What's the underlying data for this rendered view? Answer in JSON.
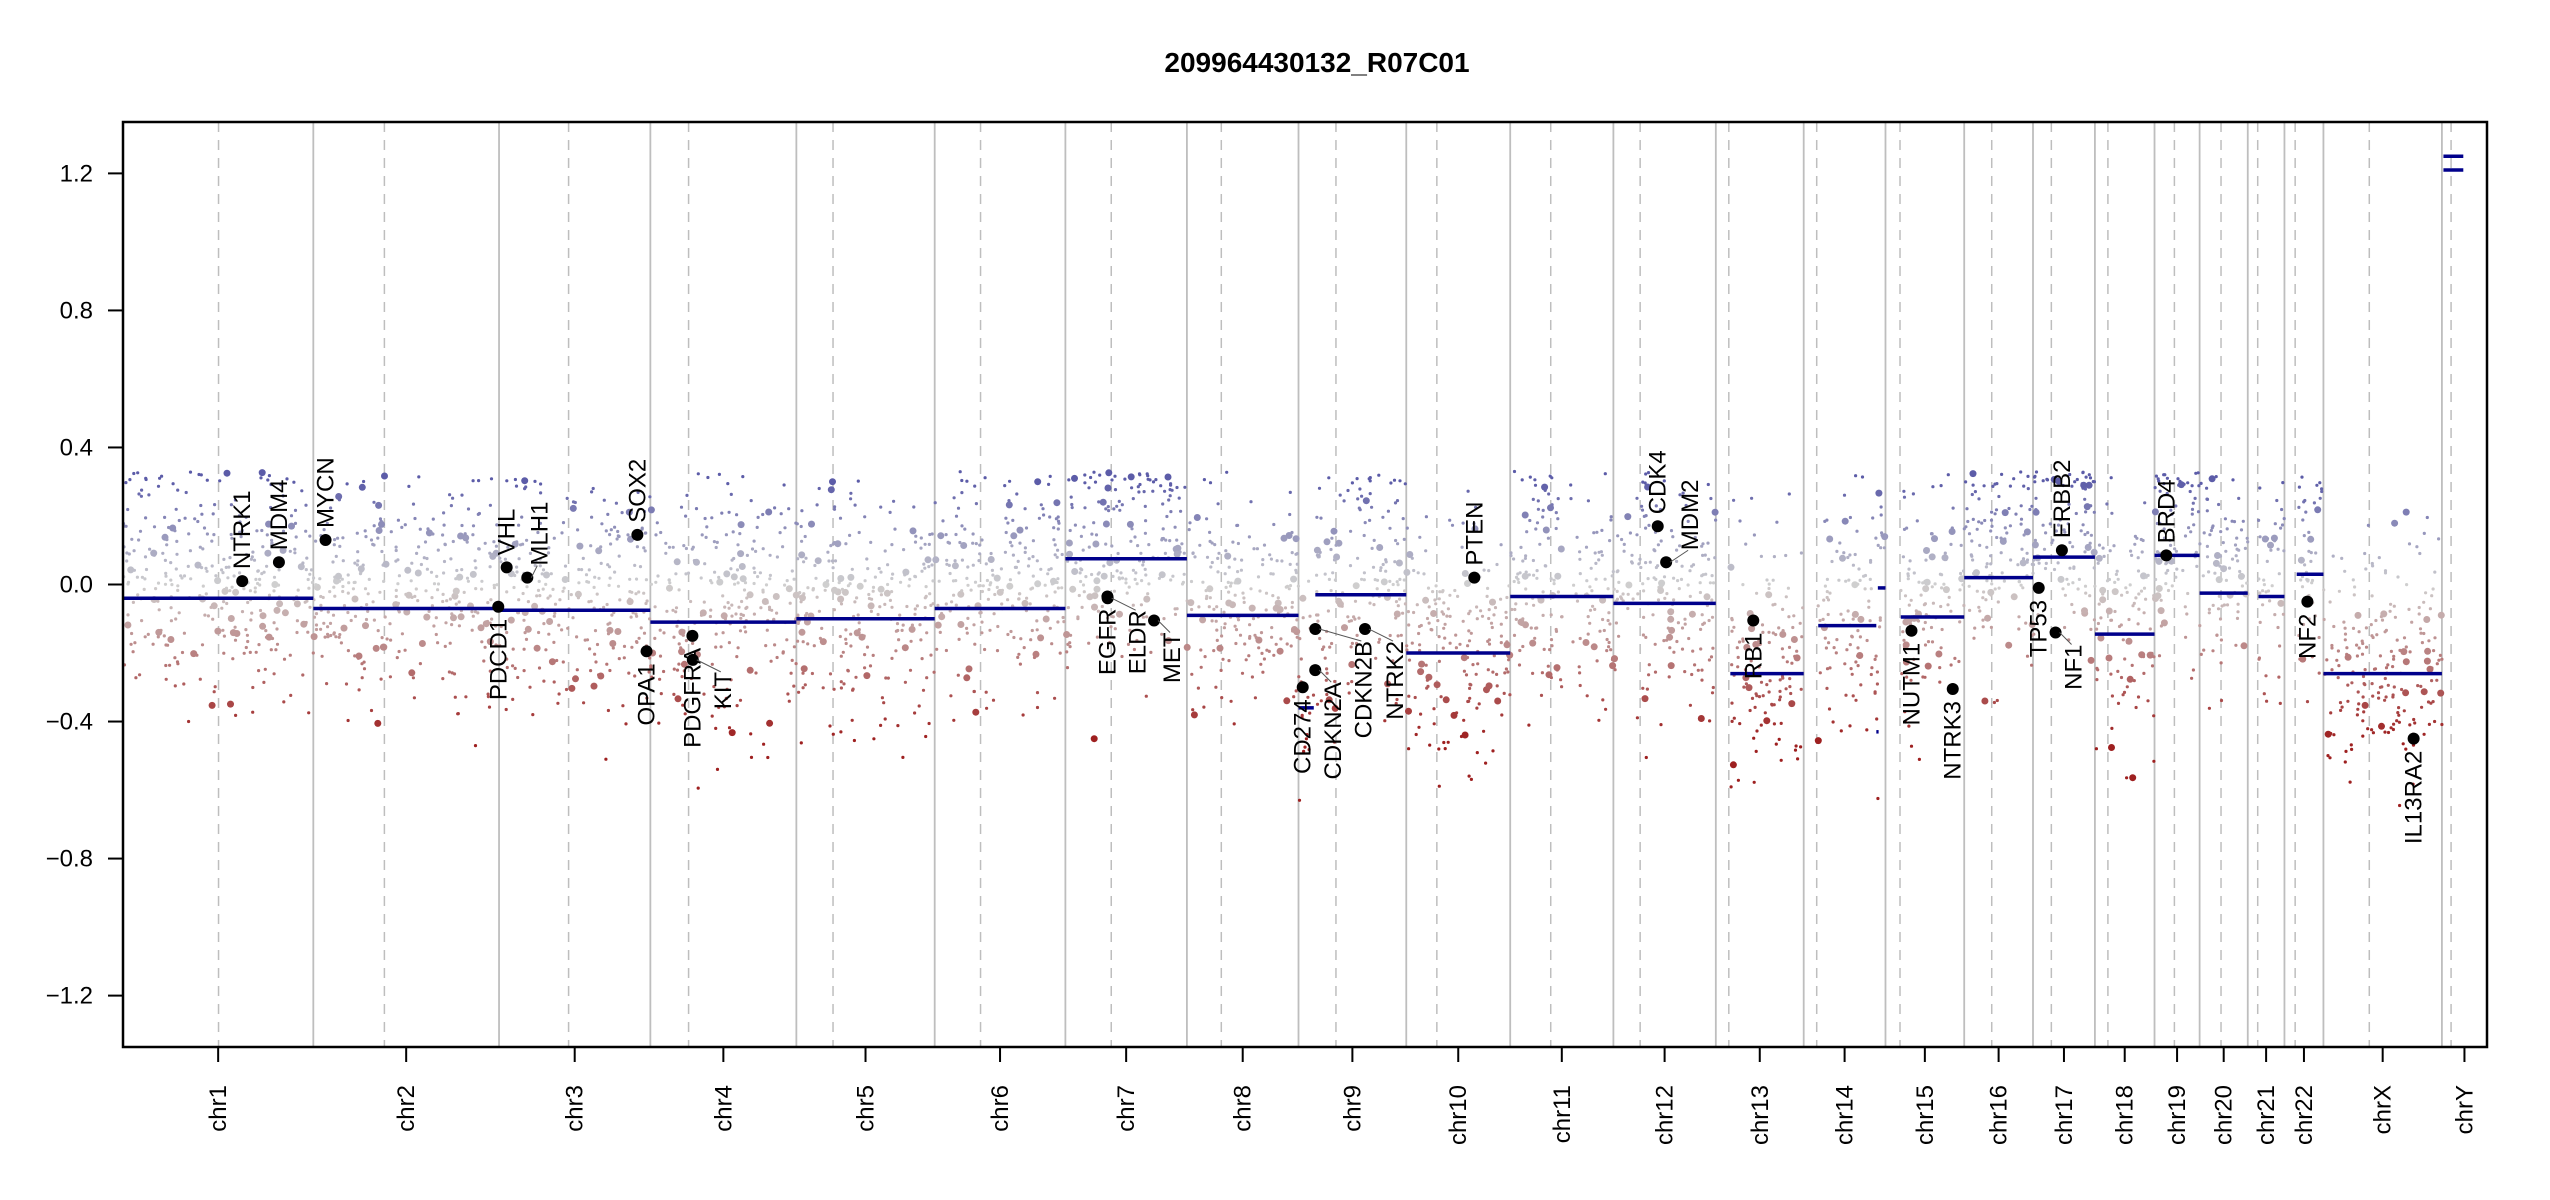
{
  "chart_data": {
    "type": "scatter",
    "title": "209964430132_R07C01",
    "xlabel": "",
    "ylabel": "",
    "ylim": [
      -1.35,
      1.35
    ],
    "yticks": [
      {
        "value": 1.2,
        "label": "1.2"
      },
      {
        "value": 0.8,
        "label": "0.8"
      },
      {
        "value": 0.4,
        "label": "0.4"
      },
      {
        "value": 0.0,
        "label": "0.0"
      },
      {
        "value": -0.4,
        "label": "−0.4"
      },
      {
        "value": -0.8,
        "label": "−0.8"
      },
      {
        "value": -1.2,
        "label": "−1.2"
      }
    ],
    "grid": false,
    "legend": "none",
    "colors": {
      "segment": "#00008b",
      "gain": "#5c5ca8",
      "neutral": "#cfcfcf",
      "loss": "#9e2020",
      "chr_boundary": "#bebebe",
      "centromere": "#bebebe",
      "gene_point": "#000000"
    },
    "chromosomes": [
      {
        "name": "chr1",
        "label": "chr1",
        "length_mb": 249,
        "centromere_mb": 125
      },
      {
        "name": "chr2",
        "label": "chr2",
        "length_mb": 243,
        "centromere_mb": 93
      },
      {
        "name": "chr3",
        "label": "chr3",
        "length_mb": 198,
        "centromere_mb": 91
      },
      {
        "name": "chr4",
        "label": "chr4",
        "length_mb": 191,
        "centromere_mb": 50
      },
      {
        "name": "chr5",
        "label": "chr5",
        "length_mb": 181,
        "centromere_mb": 48
      },
      {
        "name": "chr6",
        "label": "chr6",
        "length_mb": 171,
        "centromere_mb": 60
      },
      {
        "name": "chr7",
        "label": "chr7",
        "length_mb": 159,
        "centromere_mb": 60
      },
      {
        "name": "chr8",
        "label": "chr8",
        "length_mb": 146,
        "centromere_mb": 45
      },
      {
        "name": "chr9",
        "label": "chr9",
        "length_mb": 141,
        "centromere_mb": 49
      },
      {
        "name": "chr10",
        "label": "chr10",
        "length_mb": 136,
        "centromere_mb": 40
      },
      {
        "name": "chr11",
        "label": "chr11",
        "length_mb": 135,
        "centromere_mb": 53
      },
      {
        "name": "chr12",
        "label": "chr12",
        "length_mb": 134,
        "centromere_mb": 35
      },
      {
        "name": "chr13",
        "label": "chr13",
        "length_mb": 115,
        "centromere_mb": 17
      },
      {
        "name": "chr14",
        "label": "chr14",
        "length_mb": 107,
        "centromere_mb": 17
      },
      {
        "name": "chr15",
        "label": "chr15",
        "length_mb": 103,
        "centromere_mb": 19
      },
      {
        "name": "chr16",
        "label": "chr16",
        "length_mb": 90,
        "centromere_mb": 36
      },
      {
        "name": "chr17",
        "label": "chr17",
        "length_mb": 81,
        "centromere_mb": 24
      },
      {
        "name": "chr18",
        "label": "chr18",
        "length_mb": 78,
        "centromere_mb": 17
      },
      {
        "name": "chr19",
        "label": "chr19",
        "length_mb": 59,
        "centromere_mb": 26
      },
      {
        "name": "chr20",
        "label": "chr20",
        "length_mb": 63,
        "centromere_mb": 28
      },
      {
        "name": "chr21",
        "label": "chr21",
        "length_mb": 48,
        "centromere_mb": 13
      },
      {
        "name": "chr22",
        "label": "chr22",
        "length_mb": 51,
        "centromere_mb": 14
      },
      {
        "name": "chrX",
        "label": "chrX",
        "length_mb": 155,
        "centromere_mb": 60
      },
      {
        "name": "chrY",
        "label": "chrY",
        "length_mb": 59,
        "centromere_mb": 12
      }
    ],
    "segments": [
      {
        "chr": "chr1",
        "start_mb": 0,
        "end_mb": 249,
        "value": -0.04
      },
      {
        "chr": "chr2",
        "start_mb": 0,
        "end_mb": 243,
        "value": -0.07
      },
      {
        "chr": "chr3",
        "start_mb": 0,
        "end_mb": 198,
        "value": -0.075
      },
      {
        "chr": "chr4",
        "start_mb": 0,
        "end_mb": 191,
        "value": -0.11
      },
      {
        "chr": "chr5",
        "start_mb": 0,
        "end_mb": 181,
        "value": -0.1
      },
      {
        "chr": "chr6",
        "start_mb": 0,
        "end_mb": 171,
        "value": -0.07
      },
      {
        "chr": "chr7",
        "start_mb": 0,
        "end_mb": 159,
        "value": 0.075
      },
      {
        "chr": "chr8",
        "start_mb": 0,
        "end_mb": 146,
        "value": -0.09
      },
      {
        "chr": "chr9",
        "start_mb": 0,
        "end_mb": 20,
        "value": -0.36
      },
      {
        "chr": "chr9",
        "start_mb": 22,
        "end_mb": 141,
        "value": -0.03
      },
      {
        "chr": "chr10",
        "start_mb": 0,
        "end_mb": 136,
        "value": -0.2
      },
      {
        "chr": "chr11",
        "start_mb": 0,
        "end_mb": 135,
        "value": -0.035
      },
      {
        "chr": "chr12",
        "start_mb": 0,
        "end_mb": 134,
        "value": -0.055
      },
      {
        "chr": "chr13",
        "start_mb": 19,
        "end_mb": 115,
        "value": -0.26
      },
      {
        "chr": "chr14",
        "start_mb": 19,
        "end_mb": 95,
        "value": -0.12
      },
      {
        "chr": "chr14",
        "start_mb": 95,
        "end_mb": 98,
        "value": -0.43
      },
      {
        "chr": "chr14",
        "start_mb": 97,
        "end_mb": 107,
        "value": -0.01
      },
      {
        "chr": "chr15",
        "start_mb": 20,
        "end_mb": 103,
        "value": -0.095
      },
      {
        "chr": "chr16",
        "start_mb": 0,
        "end_mb": 90,
        "value": 0.02
      },
      {
        "chr": "chr17",
        "start_mb": 0,
        "end_mb": 81,
        "value": 0.08
      },
      {
        "chr": "chr18",
        "start_mb": 0,
        "end_mb": 78,
        "value": -0.145
      },
      {
        "chr": "chr19",
        "start_mb": 0,
        "end_mb": 59,
        "value": 0.085
      },
      {
        "chr": "chr20",
        "start_mb": 0,
        "end_mb": 63,
        "value": -0.025
      },
      {
        "chr": "chr21",
        "start_mb": 14,
        "end_mb": 48,
        "value": -0.035
      },
      {
        "chr": "chr22",
        "start_mb": 16,
        "end_mb": 51,
        "value": 0.03
      },
      {
        "chr": "chrX",
        "start_mb": 0,
        "end_mb": 155,
        "value": -0.26
      },
      {
        "chr": "chrY",
        "start_mb": 2,
        "end_mb": 28,
        "value": 1.25
      },
      {
        "chr": "chrY",
        "start_mb": 2,
        "end_mb": 28,
        "value": 1.21
      }
    ],
    "genes": [
      {
        "name": "NTRK1",
        "chr": "chr1",
        "pos_mb": 156,
        "value": 0.01,
        "label_side": "above"
      },
      {
        "name": "MDM4",
        "chr": "chr1",
        "pos_mb": 204,
        "value": 0.065,
        "label_side": "above"
      },
      {
        "name": "MYCN",
        "chr": "chr2",
        "pos_mb": 16,
        "value": 0.13,
        "label_side": "above"
      },
      {
        "name": "PDCD1",
        "chr": "chr2",
        "pos_mb": 242,
        "value": -0.065,
        "label_side": "below"
      },
      {
        "name": "VHL",
        "chr": "chr3",
        "pos_mb": 10,
        "value": 0.05,
        "label_side": "above"
      },
      {
        "name": "MLH1",
        "chr": "chr3",
        "pos_mb": 37,
        "value": 0.02,
        "label_side": "above"
      },
      {
        "name": "SOX2",
        "chr": "chr3",
        "pos_mb": 181,
        "value": 0.145,
        "label_side": "above"
      },
      {
        "name": "OPA1",
        "chr": "chr3",
        "pos_mb": 193,
        "value": -0.195,
        "label_side": "below"
      },
      {
        "name": "PDGFRA",
        "chr": "chr4",
        "pos_mb": 55,
        "value": -0.15,
        "label_side": "below"
      },
      {
        "name": "KIT",
        "chr": "chr4",
        "pos_mb": 55.5,
        "value": -0.22,
        "label_side": "below"
      },
      {
        "name": "EGFR",
        "chr": "chr7",
        "pos_mb": 55,
        "value": -0.035,
        "label_side": "below"
      },
      {
        "name": "ELDR",
        "chr": "chr7",
        "pos_mb": 55.3,
        "value": -0.04,
        "label_side": "below"
      },
      {
        "name": "MET",
        "chr": "chr7",
        "pos_mb": 116,
        "value": -0.105,
        "label_side": "below"
      },
      {
        "name": "CD274",
        "chr": "chr9",
        "pos_mb": 5.5,
        "value": -0.3,
        "label_side": "below"
      },
      {
        "name": "CDKN2A",
        "chr": "chr9",
        "pos_mb": 21.9,
        "value": -0.25,
        "label_side": "below"
      },
      {
        "name": "CDKN2B",
        "chr": "chr9",
        "pos_mb": 22.0,
        "value": -0.13,
        "label_side": "below"
      },
      {
        "name": "NTRK2",
        "chr": "chr9",
        "pos_mb": 87,
        "value": -0.13,
        "label_side": "below"
      },
      {
        "name": "PTEN",
        "chr": "chr10",
        "pos_mb": 89,
        "value": 0.02,
        "label_side": "above"
      },
      {
        "name": "CDK4",
        "chr": "chr12",
        "pos_mb": 58,
        "value": 0.17,
        "label_side": "above"
      },
      {
        "name": "MDM2",
        "chr": "chr12",
        "pos_mb": 69,
        "value": 0.065,
        "label_side": "above"
      },
      {
        "name": "RB1",
        "chr": "chr13",
        "pos_mb": 49,
        "value": -0.105,
        "label_side": "below"
      },
      {
        "name": "NUTM1",
        "chr": "chr15",
        "pos_mb": 34,
        "value": -0.135,
        "label_side": "below"
      },
      {
        "name": "NTRK3",
        "chr": "chr15",
        "pos_mb": 88,
        "value": -0.305,
        "label_side": "below"
      },
      {
        "name": "TP53",
        "chr": "chr17",
        "pos_mb": 7.5,
        "value": -0.01,
        "label_side": "below"
      },
      {
        "name": "NF1",
        "chr": "chr17",
        "pos_mb": 29.5,
        "value": -0.14,
        "label_side": "below"
      },
      {
        "name": "ERBB2",
        "chr": "chr17",
        "pos_mb": 37.8,
        "value": 0.1,
        "label_side": "above"
      },
      {
        "name": "BRD4",
        "chr": "chr19",
        "pos_mb": 15.4,
        "value": 0.085,
        "label_side": "above"
      },
      {
        "name": "NF2",
        "chr": "chr22",
        "pos_mb": 30,
        "value": -0.05,
        "label_side": "below"
      },
      {
        "name": "IL13RA2",
        "chr": "chrX",
        "pos_mb": 118,
        "value": -0.45,
        "label_side": "below"
      }
    ]
  }
}
